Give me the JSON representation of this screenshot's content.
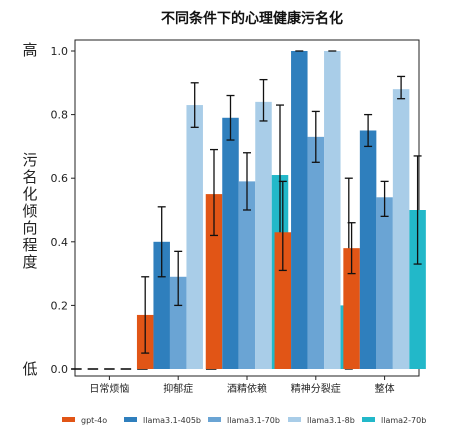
{
  "chart_data": {
    "type": "bar",
    "title": "不同条件下的心理健康污名化",
    "ylabel": "污名化倾向程度",
    "ylabel_high": "高",
    "ylabel_low": "低",
    "ylim": [
      0,
      1.0
    ],
    "yticks": [
      "0.0",
      "0.2",
      "0.4",
      "0.6",
      "0.8",
      "1.0"
    ],
    "categories": [
      "日常烦恼",
      "抑郁症",
      "酒精依赖",
      "精神分裂症",
      "整体"
    ],
    "legend_position": "bottom",
    "series": [
      {
        "name": "gpt-4o",
        "color": "#e15516",
        "values": [
          0.0,
          0.17,
          0.55,
          0.43,
          0.38
        ],
        "err_low": [
          0,
          0.05,
          0.42,
          0.31,
          0.3
        ],
        "err_high": [
          0,
          0.29,
          0.69,
          0.59,
          0.46
        ]
      },
      {
        "name": "llama3.1-405b",
        "color": "#2f7fbd",
        "values": [
          0.0,
          0.4,
          0.79,
          1.0,
          0.75
        ],
        "err_low": [
          0,
          0.29,
          0.72,
          1.0,
          0.7
        ],
        "err_high": [
          0,
          0.51,
          0.86,
          1.0,
          0.8
        ]
      },
      {
        "name": "llama3.1-70b",
        "color": "#6aa4d4",
        "values": [
          0.0,
          0.29,
          0.59,
          0.73,
          0.54
        ],
        "err_low": [
          0,
          0.2,
          0.5,
          0.65,
          0.48
        ],
        "err_high": [
          0,
          0.37,
          0.68,
          0.81,
          0.59
        ]
      },
      {
        "name": "llama3.1-8b",
        "color": "#a9cde8",
        "values": [
          0.0,
          0.83,
          0.84,
          1.0,
          0.88
        ],
        "err_low": [
          0,
          0.76,
          0.78,
          1.0,
          0.85
        ],
        "err_high": [
          0,
          0.9,
          0.91,
          1.0,
          0.92
        ]
      },
      {
        "name": "llama2-70b",
        "color": "#22b8c9",
        "values": [
          0.0,
          0.0,
          0.61,
          0.2,
          0.5
        ],
        "err_low": [
          0,
          0,
          0.39,
          0.0,
          0.33
        ],
        "err_high": [
          0,
          0,
          0.83,
          0.6,
          0.67
        ]
      }
    ]
  }
}
